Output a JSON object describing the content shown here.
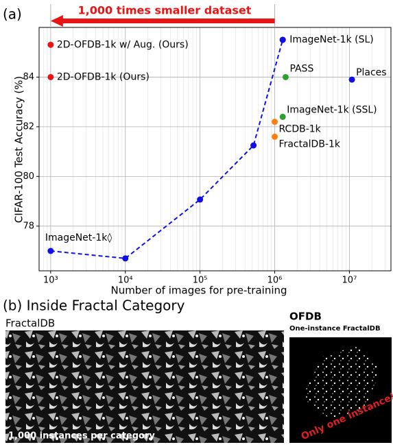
{
  "chart_data": {
    "type": "scatter",
    "panel_label": "(a)",
    "annotation": "1,000 times smaller dataset",
    "xlabel": "Number of images for pre-training",
    "ylabel": "CIFAR-100 Test Accuracy (%)",
    "xscale": "log",
    "grid": true,
    "xlim": [
      700,
      36000000
    ],
    "ylim": [
      76.2,
      86.0
    ],
    "xticks": [
      {
        "value": 1000,
        "label": "10³"
      },
      {
        "value": 10000,
        "label": "10⁴"
      },
      {
        "value": 100000,
        "label": "10⁵"
      },
      {
        "value": 1000000,
        "label": "10⁶"
      },
      {
        "value": 10000000,
        "label": "10⁷"
      }
    ],
    "yticks": [
      78,
      80,
      82,
      84
    ],
    "points": [
      {
        "label": "2D-OFDB-1k w/ Aug. (Ours)",
        "x": 1000,
        "y": 85.3,
        "color": "#e81515"
      },
      {
        "label": "2D-OFDB-1k (Ours)",
        "x": 1000,
        "y": 84.0,
        "color": "#e81515"
      },
      {
        "label": "ImageNet-1k (SL)",
        "x": 1280000,
        "y": 85.5,
        "color": "#1010e6"
      },
      {
        "label": "PASS",
        "x": 1400000,
        "y": 84.0,
        "color": "#2ca02c"
      },
      {
        "label": "Places",
        "x": 10800000,
        "y": 83.9,
        "color": "#1010e6"
      },
      {
        "label": "ImageNet-1k (SSL)",
        "x": 1280000,
        "y": 82.4,
        "color": "#2ca02c"
      },
      {
        "label": "RCDB-1k",
        "x": 1000000,
        "y": 82.2,
        "color": "#ff7f0e"
      },
      {
        "label": "FractalDB-1k",
        "x": 1000000,
        "y": 81.6,
        "color": "#ff7f0e"
      }
    ],
    "line": {
      "label": "ImageNet-1k◊",
      "color": "#1010e6",
      "x": [
        1000,
        10000,
        100000,
        520000,
        1280000
      ],
      "y": [
        77.0,
        76.7,
        79.07,
        81.25,
        85.5
      ]
    }
  },
  "panel_b": {
    "title": "(b) Inside Fractal Category",
    "left_title": "FractalDB",
    "left_caption": "1,000 instances per category",
    "right_title": "OFDB",
    "right_subtitle": "One-instance FractalDB",
    "right_caption": "Only one instance!!"
  }
}
